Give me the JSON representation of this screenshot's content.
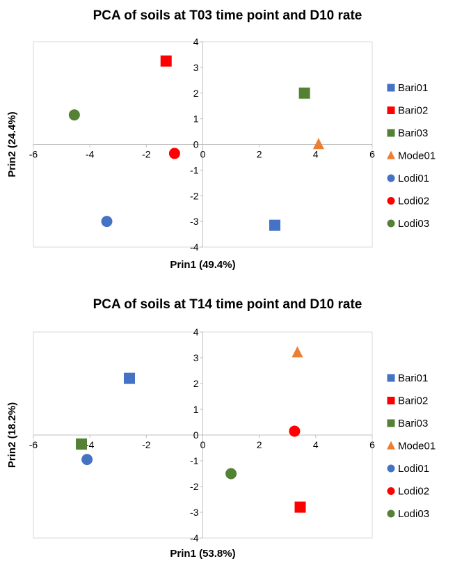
{
  "chart_data": [
    {
      "type": "scatter",
      "title": "PCA of soils at T03 time point and D10 rate",
      "xlabel": "Prin1 (49.4%)",
      "ylabel": "Prin2 (24.4%)",
      "xlim": [
        -6,
        6
      ],
      "ylim": [
        -4,
        4
      ],
      "xticks": [
        -6,
        -4,
        -2,
        0,
        2,
        4,
        6
      ],
      "yticks": [
        -4,
        -3,
        -2,
        -1,
        0,
        1,
        2,
        3,
        4
      ],
      "grid": false,
      "legend": "right",
      "series": [
        {
          "name": "Bari01",
          "marker": "square",
          "color": "#4472c4",
          "x": 2.55,
          "y": -3.15
        },
        {
          "name": "Bari02",
          "marker": "square",
          "color": "#ff0000",
          "x": -1.3,
          "y": 3.25
        },
        {
          "name": "Bari03",
          "marker": "square",
          "color": "#548235",
          "x": 3.6,
          "y": 2.0
        },
        {
          "name": "Mode01",
          "marker": "triangle",
          "color": "#ed7d31",
          "x": 4.1,
          "y": 0.0
        },
        {
          "name": "Lodi01",
          "marker": "circle",
          "color": "#4472c4",
          "x": -3.4,
          "y": -3.0
        },
        {
          "name": "Lodi02",
          "marker": "circle",
          "color": "#ff0000",
          "x": -1.0,
          "y": -0.35
        },
        {
          "name": "Lodi03",
          "marker": "circle",
          "color": "#548235",
          "x": -4.55,
          "y": 1.15
        }
      ]
    },
    {
      "type": "scatter",
      "title": "PCA of soils at T14 time point and D10 rate",
      "xlabel": "Prin1 (53.8%)",
      "ylabel": "Prin2 (18.2%)",
      "xlim": [
        -6,
        6
      ],
      "ylim": [
        -4,
        4
      ],
      "xticks": [
        -6,
        -4,
        -2,
        0,
        2,
        4,
        6
      ],
      "yticks": [
        -4,
        -3,
        -2,
        -1,
        0,
        1,
        2,
        3,
        4
      ],
      "grid": false,
      "legend": "right",
      "series": [
        {
          "name": "Bari01",
          "marker": "square",
          "color": "#4472c4",
          "x": -2.6,
          "y": 2.2
        },
        {
          "name": "Bari02",
          "marker": "square",
          "color": "#ff0000",
          "x": 3.45,
          "y": -2.8
        },
        {
          "name": "Bari03",
          "marker": "square",
          "color": "#548235",
          "x": -4.3,
          "y": -0.35
        },
        {
          "name": "Mode01",
          "marker": "triangle",
          "color": "#ed7d31",
          "x": 3.35,
          "y": 3.2
        },
        {
          "name": "Lodi01",
          "marker": "circle",
          "color": "#4472c4",
          "x": -4.1,
          "y": -0.95
        },
        {
          "name": "Lodi02",
          "marker": "circle",
          "color": "#ff0000",
          "x": 3.25,
          "y": 0.15
        },
        {
          "name": "Lodi03",
          "marker": "circle",
          "color": "#548235",
          "x": 1.0,
          "y": -1.5
        }
      ]
    }
  ]
}
